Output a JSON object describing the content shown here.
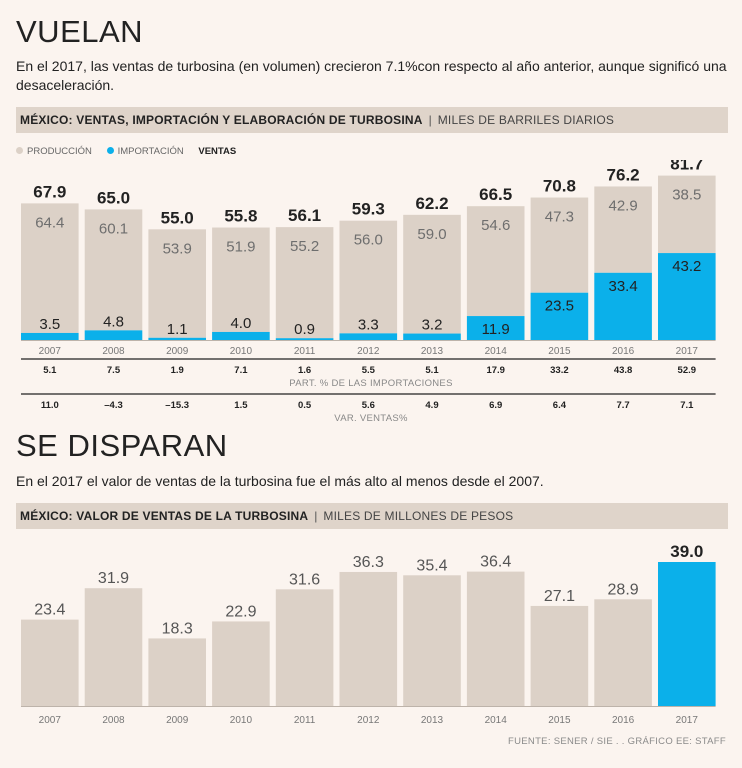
{
  "section1": {
    "title": "VUELAN",
    "description": "En el 2017, las ventas de turbosina (en volumen) crecieron 7.1%con respecto al año anterior, aunque significó una desaceleración.",
    "header_bold": "MÉXICO: VENTAS, IMPORTACIÓN Y ELABORACIÓN DE TURBOSINA",
    "header_sep": "|",
    "header_unit": "MILES DE BARRILES DIARIOS",
    "legend": {
      "produccion": "PRODUCCIÓN",
      "importacion": "IMPORTACIÓN",
      "ventas": "VENTAS"
    },
    "row1_caption": "PART. % DE LAS IMPORTACIONES",
    "row2_caption": "VAR. VENTAS%"
  },
  "section2": {
    "title": "SE DISPARAN",
    "description": "En el 2017 el valor de ventas de la turbosina fue el más alto al menos desde el 2007.",
    "header_bold": "MÉXICO: VALOR DE VENTAS DE LA TURBOSINA",
    "header_sep": "|",
    "header_unit": "MILES DE MILLONES DE PESOS"
  },
  "source": "FUENTE: SENER / SIE . . GRÁFICO EE: STAFF",
  "colors": {
    "produccion": "#dcd1c7",
    "importacion": "#0bb0ea",
    "background": "#fbf4ef"
  },
  "chart_data": [
    {
      "type": "bar",
      "stacked": true,
      "title": "MÉXICO: VENTAS, IMPORTACIÓN Y ELABORACIÓN DE TURBOSINA",
      "ylabel": "MILES DE BARRILES DIARIOS",
      "categories": [
        "2007",
        "2008",
        "2009",
        "2010",
        "2011",
        "2012",
        "2013",
        "2014",
        "2015",
        "2016",
        "2017"
      ],
      "series": [
        {
          "name": "IMPORTACIÓN",
          "values": [
            3.5,
            4.8,
            1.1,
            4.0,
            0.9,
            3.3,
            3.2,
            11.9,
            23.5,
            33.4,
            43.2
          ]
        },
        {
          "name": "PRODUCCIÓN",
          "values": [
            64.4,
            60.1,
            53.9,
            51.9,
            55.2,
            56.0,
            59.0,
            54.6,
            47.3,
            42.9,
            38.5
          ]
        }
      ],
      "totals_label": "VENTAS",
      "totals": [
        67.9,
        65.0,
        55.0,
        55.8,
        56.1,
        59.3,
        62.2,
        66.5,
        70.8,
        76.2,
        81.7
      ],
      "import_share_pct": [
        "5.1",
        "7.5",
        "1.9",
        "7.1",
        "1.6",
        "5.5",
        "5.1",
        "17.9",
        "33.2",
        "43.8",
        "52.9"
      ],
      "sales_change_pct": [
        "11.0",
        "–4.3",
        "–15.3",
        "1.5",
        "0.5",
        "5.6",
        "4.9",
        "6.9",
        "6.4",
        "7.7",
        "7.1"
      ],
      "ylim": [
        0,
        82
      ]
    },
    {
      "type": "bar",
      "title": "MÉXICO: VALOR DE VENTAS DE LA TURBOSINA",
      "ylabel": "MILES DE MILLONES DE PESOS",
      "categories": [
        "2007",
        "2008",
        "2009",
        "2010",
        "2011",
        "2012",
        "2013",
        "2014",
        "2015",
        "2016",
        "2017"
      ],
      "values": [
        23.4,
        31.9,
        18.3,
        22.9,
        31.6,
        36.3,
        35.4,
        36.4,
        27.1,
        28.9,
        39.0
      ],
      "highlight_index": 10,
      "ylim": [
        0,
        39
      ]
    }
  ]
}
